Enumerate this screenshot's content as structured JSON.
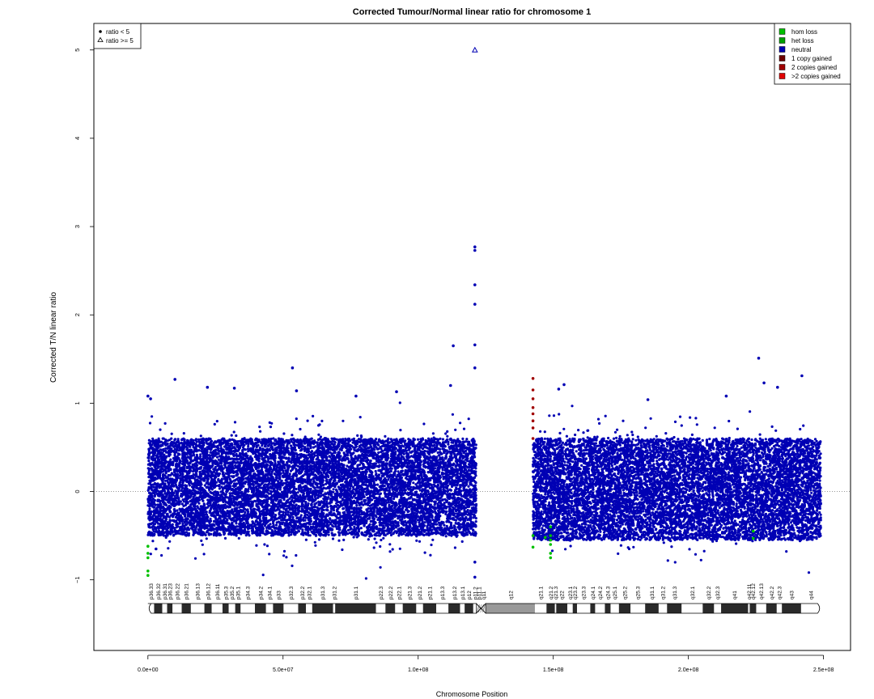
{
  "chart_data": {
    "type": "scatter",
    "title": "Corrected Tumour/Normal linear ratio for chromosome  1",
    "xlabel": "Chromosome Position",
    "ylabel": "Corrected T/N linear ratio",
    "xlim": [
      -20000000,
      260000000
    ],
    "ylim": [
      -1.8,
      5.3
    ],
    "x_ticks": [
      {
        "value": 0,
        "label": "0.0e+00"
      },
      {
        "value": 50000000,
        "label": "5.0e+07"
      },
      {
        "value": 100000000,
        "label": "1.0e+08"
      },
      {
        "value": 150000000,
        "label": "1.5e+08"
      },
      {
        "value": 200000000,
        "label": "2.0e+08"
      },
      {
        "value": 250000000,
        "label": "2.5e+08"
      }
    ],
    "y_ticks": [
      {
        "value": -1,
        "label": "−1"
      },
      {
        "value": 0,
        "label": "0"
      },
      {
        "value": 1,
        "label": "1"
      },
      {
        "value": 2,
        "label": "2"
      },
      {
        "value": 3,
        "label": "3"
      },
      {
        "value": 4,
        "label": "4"
      },
      {
        "value": 5,
        "label": "5"
      }
    ],
    "reference_line": {
      "y": 0,
      "style": "dotted"
    },
    "shape_legend": {
      "position": "top-left",
      "items": [
        {
          "symbol": "filled-circle",
          "label": "ratio < 5"
        },
        {
          "symbol": "open-triangle",
          "label": "ratio >= 5"
        }
      ]
    },
    "legend": {
      "position": "top-right",
      "items": [
        {
          "label": "hom loss",
          "color": "#00c000"
        },
        {
          "label": "het loss",
          "color": "#00a000"
        },
        {
          "label": "neutral",
          "color": "#0000b4"
        },
        {
          "label": "1 copy gained",
          "color": "#6e0000"
        },
        {
          "label": "2 copies gained",
          "color": "#a00000"
        },
        {
          "label": ">2 copies gained",
          "color": "#e00000"
        }
      ]
    },
    "colors": {
      "neutral": "#0000b4",
      "loss": "#00c000",
      "gain": "#a00000",
      "reference_line": "#777777"
    },
    "series": [
      {
        "name": "neutral",
        "segments": [
          {
            "x_start": 0,
            "x_end": 121500000,
            "band_low": -0.5,
            "band_high": 0.6,
            "point_count": 11000
          },
          {
            "x_start": 142500000,
            "x_end": 249000000,
            "band_low": -0.55,
            "band_high": 0.6,
            "point_count": 10000
          }
        ],
        "outliers": [
          {
            "x": 10000000,
            "y": 1.27
          },
          {
            "x": 22000000,
            "y": 1.18
          },
          {
            "x": 32000000,
            "y": 1.17
          },
          {
            "x": 53500000,
            "y": 1.4
          },
          {
            "x": 55000000,
            "y": 1.14
          },
          {
            "x": 77000000,
            "y": 1.08
          },
          {
            "x": 92000000,
            "y": 1.13
          },
          {
            "x": 113000000,
            "y": 1.65
          },
          {
            "x": 112000000,
            "y": 1.2
          },
          {
            "x": 121000000,
            "y": 2.77
          },
          {
            "x": 121000000,
            "y": 2.73
          },
          {
            "x": 121000000,
            "y": 2.34
          },
          {
            "x": 121000000,
            "y": 2.12
          },
          {
            "x": 121000000,
            "y": 1.66
          },
          {
            "x": 121000000,
            "y": 1.4
          },
          {
            "x": 121000000,
            "y": -0.97
          },
          {
            "x": 121000000,
            "y": -0.8
          },
          {
            "x": 154000000,
            "y": 1.21
          },
          {
            "x": 152000000,
            "y": 1.16
          },
          {
            "x": 185000000,
            "y": 1.04
          },
          {
            "x": 214000000,
            "y": 1.08
          },
          {
            "x": 226000000,
            "y": 1.51
          },
          {
            "x": 228000000,
            "y": 1.23
          },
          {
            "x": 233000000,
            "y": 1.18
          },
          {
            "x": 242000000,
            "y": 1.31
          },
          {
            "x": 0,
            "y": 1.08
          },
          {
            "x": 1000000,
            "y": 1.05
          },
          {
            "x": 3000000,
            "y": -0.65
          }
        ]
      },
      {
        "name": "loss",
        "points": [
          {
            "x": 0,
            "y": -0.75
          },
          {
            "x": 0,
            "y": -0.7
          },
          {
            "x": 0,
            "y": -0.9
          },
          {
            "x": 0,
            "y": -0.95
          },
          {
            "x": 0,
            "y": -0.62
          },
          {
            "x": 142500000,
            "y": -0.63
          },
          {
            "x": 142500000,
            "y": -0.5
          },
          {
            "x": 149000000,
            "y": -0.4
          },
          {
            "x": 149000000,
            "y": -0.5
          },
          {
            "x": 149000000,
            "y": -0.6
          },
          {
            "x": 149000000,
            "y": -0.7
          },
          {
            "x": 149000000,
            "y": -0.75
          },
          {
            "x": 149000000,
            "y": -0.55
          },
          {
            "x": 147000000,
            "y": -0.52
          },
          {
            "x": 224000000,
            "y": -0.45
          },
          {
            "x": 224000000,
            "y": -0.53
          }
        ]
      },
      {
        "name": "gain",
        "points": [
          {
            "x": 142500000,
            "y": 1.28
          },
          {
            "x": 142500000,
            "y": 1.15
          },
          {
            "x": 142500000,
            "y": 1.05
          },
          {
            "x": 142500000,
            "y": 0.95
          },
          {
            "x": 142500000,
            "y": 0.88
          },
          {
            "x": 142500000,
            "y": 0.8
          },
          {
            "x": 142500000,
            "y": 0.72
          },
          {
            "x": 142500000,
            "y": 0.6
          }
        ]
      },
      {
        "name": "ratio >= 5",
        "points": [
          {
            "x": 121000000,
            "y": 5
          }
        ]
      }
    ],
    "ideogram": {
      "p_end": 121500000,
      "q_start": 125000000,
      "length": 249000000,
      "bands": [
        {
          "name": "p36.33",
          "start": 0,
          "end": 2300000,
          "stain": "white"
        },
        {
          "name": "p36.32",
          "start": 2300000,
          "end": 5300000,
          "stain": "dark"
        },
        {
          "name": "p36.31",
          "start": 5300000,
          "end": 7100000,
          "stain": "white"
        },
        {
          "name": "p36.23",
          "start": 7100000,
          "end": 9100000,
          "stain": "dark"
        },
        {
          "name": "p36.22",
          "start": 9100000,
          "end": 12500000,
          "stain": "white"
        },
        {
          "name": "p36.21",
          "start": 12500000,
          "end": 15900000,
          "stain": "dark"
        },
        {
          "name": "p36.13",
          "start": 15900000,
          "end": 20900000,
          "stain": "white"
        },
        {
          "name": "p36.12",
          "start": 20900000,
          "end": 23600000,
          "stain": "dark"
        },
        {
          "name": "p36.11",
          "start": 23600000,
          "end": 27600000,
          "stain": "white"
        },
        {
          "name": "p35.3",
          "start": 27600000,
          "end": 29900000,
          "stain": "dark"
        },
        {
          "name": "p35.2",
          "start": 29900000,
          "end": 32300000,
          "stain": "white"
        },
        {
          "name": "p35.1",
          "start": 32300000,
          "end": 34300000,
          "stain": "dark"
        },
        {
          "name": "p34.3",
          "start": 34300000,
          "end": 39600000,
          "stain": "white"
        },
        {
          "name": "p34.2",
          "start": 39600000,
          "end": 43700000,
          "stain": "dark"
        },
        {
          "name": "p34.1",
          "start": 43700000,
          "end": 46300000,
          "stain": "white"
        },
        {
          "name": "p33",
          "start": 46300000,
          "end": 50200000,
          "stain": "dark"
        },
        {
          "name": "p32.3",
          "start": 50200000,
          "end": 55600000,
          "stain": "white"
        },
        {
          "name": "p32.2",
          "start": 55600000,
          "end": 58500000,
          "stain": "dark"
        },
        {
          "name": "p32.1",
          "start": 58500000,
          "end": 60800000,
          "stain": "white"
        },
        {
          "name": "p31.3",
          "start": 60800000,
          "end": 68500000,
          "stain": "dark"
        },
        {
          "name": "p31.2",
          "start": 68500000,
          "end": 69300000,
          "stain": "white"
        },
        {
          "name": "p31.1",
          "start": 69300000,
          "end": 84400000,
          "stain": "dark"
        },
        {
          "name": "p22.3",
          "start": 84400000,
          "end": 87900000,
          "stain": "white"
        },
        {
          "name": "p22.2",
          "start": 87900000,
          "end": 91500000,
          "stain": "dark"
        },
        {
          "name": "p22.1",
          "start": 91500000,
          "end": 94300000,
          "stain": "white"
        },
        {
          "name": "p21.3",
          "start": 94300000,
          "end": 99300000,
          "stain": "dark"
        },
        {
          "name": "p21.2",
          "start": 99300000,
          "end": 101800000,
          "stain": "white"
        },
        {
          "name": "p21.1",
          "start": 101800000,
          "end": 106700000,
          "stain": "dark"
        },
        {
          "name": "p13.3",
          "start": 106700000,
          "end": 111200000,
          "stain": "white"
        },
        {
          "name": "p13.2",
          "start": 111200000,
          "end": 115500000,
          "stain": "dark"
        },
        {
          "name": "p13.1",
          "start": 115500000,
          "end": 117200000,
          "stain": "white"
        },
        {
          "name": "p12",
          "start": 117200000,
          "end": 120400000,
          "stain": "dark"
        },
        {
          "name": "p11.2",
          "start": 120400000,
          "end": 121700000,
          "stain": "white"
        },
        {
          "name": "p11.1",
          "start": 121700000,
          "end": 123400000,
          "stain": "centromere"
        },
        {
          "name": "q11",
          "start": 123400000,
          "end": 125100000,
          "stain": "centromere"
        },
        {
          "name": "q12",
          "start": 125100000,
          "end": 143200000,
          "stain": "heterochromatin"
        },
        {
          "name": "q21.1",
          "start": 143200000,
          "end": 147500000,
          "stain": "white"
        },
        {
          "name": "q21.2",
          "start": 147500000,
          "end": 150600000,
          "stain": "dark"
        },
        {
          "name": "q21.3",
          "start": 150600000,
          "end": 151100000,
          "stain": "white"
        },
        {
          "name": "q22",
          "start": 151100000,
          "end": 155200000,
          "stain": "dark"
        },
        {
          "name": "q23.1",
          "start": 155200000,
          "end": 157200000,
          "stain": "white"
        },
        {
          "name": "q23.2",
          "start": 157200000,
          "end": 158800000,
          "stain": "dark"
        },
        {
          "name": "q23.3",
          "start": 158800000,
          "end": 163700000,
          "stain": "white"
        },
        {
          "name": "q24.1",
          "start": 163700000,
          "end": 165500000,
          "stain": "dark"
        },
        {
          "name": "q24.2",
          "start": 165500000,
          "end": 169100000,
          "stain": "white"
        },
        {
          "name": "q24.3",
          "start": 169100000,
          "end": 171200000,
          "stain": "dark"
        },
        {
          "name": "q25.1",
          "start": 171200000,
          "end": 174300000,
          "stain": "white"
        },
        {
          "name": "q25.2",
          "start": 174300000,
          "end": 178600000,
          "stain": "dark"
        },
        {
          "name": "q25.3",
          "start": 178600000,
          "end": 184000000,
          "stain": "white"
        },
        {
          "name": "q31.1",
          "start": 184000000,
          "end": 189000000,
          "stain": "dark"
        },
        {
          "name": "q31.2",
          "start": 189000000,
          "end": 192100000,
          "stain": "white"
        },
        {
          "name": "q31.3",
          "start": 192100000,
          "end": 197500000,
          "stain": "dark"
        },
        {
          "name": "q32.1",
          "start": 197500000,
          "end": 205300000,
          "stain": "white"
        },
        {
          "name": "q32.2",
          "start": 205300000,
          "end": 209500000,
          "stain": "dark"
        },
        {
          "name": "q32.3",
          "start": 209500000,
          "end": 212100000,
          "stain": "white"
        },
        {
          "name": "q41",
          "start": 212100000,
          "end": 222100000,
          "stain": "dark"
        },
        {
          "name": "q42.11",
          "start": 222100000,
          "end": 222700000,
          "stain": "white"
        },
        {
          "name": "q42.12",
          "start": 222700000,
          "end": 225100000,
          "stain": "dark"
        },
        {
          "name": "q42.13",
          "start": 225100000,
          "end": 228800000,
          "stain": "white"
        },
        {
          "name": "q42.2",
          "start": 228800000,
          "end": 232700000,
          "stain": "dark"
        },
        {
          "name": "q42.3",
          "start": 232700000,
          "end": 234600000,
          "stain": "white"
        },
        {
          "name": "q43",
          "start": 234600000,
          "end": 241700000,
          "stain": "dark"
        },
        {
          "name": "q44",
          "start": 241700000,
          "end": 249000000,
          "stain": "white"
        }
      ]
    }
  }
}
